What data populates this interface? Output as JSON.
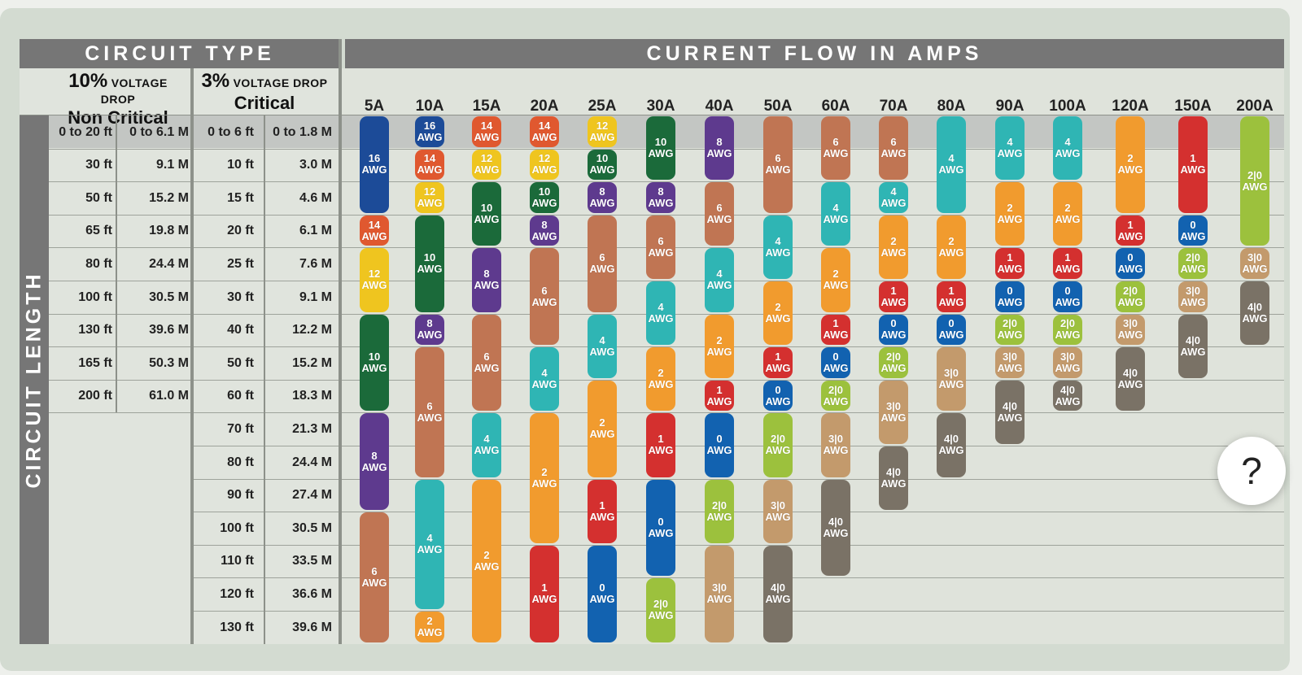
{
  "header": {
    "circuit_type": "CIRCUIT TYPE",
    "current_flow": "CURRENT FLOW IN AMPS",
    "circuit_length": "CIRCUIT LENGTH"
  },
  "circuit_types": [
    {
      "percent": "10%",
      "voltage_drop": "VOLTAGE DROP",
      "criticality": "Non Critical"
    },
    {
      "percent": "3%",
      "voltage_drop": "VOLTAGE DROP",
      "criticality": "Critical"
    }
  ],
  "non_critical_lengths": [
    [
      "0 to 20 ft",
      "0 to 6.1 M"
    ],
    [
      "30 ft",
      "9.1 M"
    ],
    [
      "50 ft",
      "15.2 M"
    ],
    [
      "65 ft",
      "19.8 M"
    ],
    [
      "80 ft",
      "24.4 M"
    ],
    [
      "100 ft",
      "30.5 M"
    ],
    [
      "130 ft",
      "39.6 M"
    ],
    [
      "165 ft",
      "50.3 M"
    ],
    [
      "200 ft",
      "61.0 M"
    ]
  ],
  "critical_lengths": [
    [
      "0 to 6 ft",
      "0 to 1.8 M"
    ],
    [
      "10 ft",
      "3.0 M"
    ],
    [
      "15 ft",
      "4.6 M"
    ],
    [
      "20 ft",
      "6.1 M"
    ],
    [
      "25 ft",
      "7.6 M"
    ],
    [
      "30 ft",
      "9.1 M"
    ],
    [
      "40 ft",
      "12.2 M"
    ],
    [
      "50 ft",
      "15.2 M"
    ],
    [
      "60 ft",
      "18.3 M"
    ],
    [
      "70 ft",
      "21.3 M"
    ],
    [
      "80 ft",
      "24.4 M"
    ],
    [
      "90 ft",
      "27.4 M"
    ],
    [
      "100 ft",
      "30.5 M"
    ],
    [
      "110 ft",
      "33.5 M"
    ],
    [
      "120 ft",
      "36.6 M"
    ],
    [
      "130 ft",
      "39.6 M"
    ]
  ],
  "unit_label": "AWG",
  "gauge_colors": {
    "16": "#1c4b98",
    "14": "#e0582f",
    "12": "#efc51f",
    "10": "#1b6a3a",
    "8": "#5e3a8e",
    "6": "#c07553",
    "4": "#2fb5b4",
    "2": "#f19b2e",
    "1": "#d4302f",
    "0": "#1262b0",
    "2|0": "#9cc13d",
    "3|0": "#c39a6c",
    "4|0": "#7a7266"
  },
  "amp_columns": [
    {
      "amps": "5A",
      "segments": [
        {
          "g": "16",
          "s": 0,
          "n": 3
        },
        {
          "g": "14",
          "s": 3,
          "n": 1
        },
        {
          "g": "12",
          "s": 4,
          "n": 2
        },
        {
          "g": "10",
          "s": 6,
          "n": 3
        },
        {
          "g": "8",
          "s": 9,
          "n": 3
        },
        {
          "g": "6",
          "s": 12,
          "n": 4
        }
      ]
    },
    {
      "amps": "10A",
      "segments": [
        {
          "g": "16",
          "s": 0,
          "n": 1
        },
        {
          "g": "14",
          "s": 1,
          "n": 1
        },
        {
          "g": "12",
          "s": 2,
          "n": 1
        },
        {
          "g": "10",
          "s": 3,
          "n": 3
        },
        {
          "g": "8",
          "s": 6,
          "n": 1
        },
        {
          "g": "6",
          "s": 7,
          "n": 4
        },
        {
          "g": "4",
          "s": 11,
          "n": 4
        },
        {
          "g": "2",
          "s": 15,
          "n": 1
        }
      ]
    },
    {
      "amps": "15A",
      "segments": [
        {
          "g": "14",
          "s": 0,
          "n": 1
        },
        {
          "g": "12",
          "s": 1,
          "n": 1
        },
        {
          "g": "10",
          "s": 2,
          "n": 2
        },
        {
          "g": "8",
          "s": 4,
          "n": 2
        },
        {
          "g": "6",
          "s": 6,
          "n": 3
        },
        {
          "g": "4",
          "s": 9,
          "n": 2
        },
        {
          "g": "2",
          "s": 11,
          "n": 5
        }
      ]
    },
    {
      "amps": "20A",
      "segments": [
        {
          "g": "14",
          "s": 0,
          "n": 1
        },
        {
          "g": "12",
          "s": 1,
          "n": 1
        },
        {
          "g": "10",
          "s": 2,
          "n": 1
        },
        {
          "g": "8",
          "s": 3,
          "n": 1
        },
        {
          "g": "6",
          "s": 4,
          "n": 3
        },
        {
          "g": "4",
          "s": 7,
          "n": 2
        },
        {
          "g": "2",
          "s": 9,
          "n": 4
        },
        {
          "g": "1",
          "s": 13,
          "n": 3
        }
      ]
    },
    {
      "amps": "25A",
      "segments": [
        {
          "g": "12",
          "s": 0,
          "n": 1
        },
        {
          "g": "10",
          "s": 1,
          "n": 1
        },
        {
          "g": "8",
          "s": 2,
          "n": 1
        },
        {
          "g": "6",
          "s": 3,
          "n": 3
        },
        {
          "g": "4",
          "s": 6,
          "n": 2
        },
        {
          "g": "2",
          "s": 8,
          "n": 3
        },
        {
          "g": "1",
          "s": 11,
          "n": 2
        },
        {
          "g": "0",
          "s": 13,
          "n": 3
        }
      ]
    },
    {
      "amps": "30A",
      "segments": [
        {
          "g": "10",
          "s": 0,
          "n": 2
        },
        {
          "g": "8",
          "s": 2,
          "n": 1
        },
        {
          "g": "6",
          "s": 3,
          "n": 2
        },
        {
          "g": "4",
          "s": 5,
          "n": 2
        },
        {
          "g": "2",
          "s": 7,
          "n": 2
        },
        {
          "g": "1",
          "s": 9,
          "n": 2
        },
        {
          "g": "0",
          "s": 11,
          "n": 3
        },
        {
          "g": "2|0",
          "s": 14,
          "n": 2
        }
      ]
    },
    {
      "amps": "40A",
      "segments": [
        {
          "g": "8",
          "s": 0,
          "n": 2
        },
        {
          "g": "6",
          "s": 2,
          "n": 2
        },
        {
          "g": "4",
          "s": 4,
          "n": 2
        },
        {
          "g": "2",
          "s": 6,
          "n": 2
        },
        {
          "g": "1",
          "s": 8,
          "n": 1
        },
        {
          "g": "0",
          "s": 9,
          "n": 2
        },
        {
          "g": "2|0",
          "s": 11,
          "n": 2
        },
        {
          "g": "3|0",
          "s": 13,
          "n": 3
        }
      ]
    },
    {
      "amps": "50A",
      "segments": [
        {
          "g": "6",
          "s": 0,
          "n": 3
        },
        {
          "g": "4",
          "s": 3,
          "n": 2
        },
        {
          "g": "2",
          "s": 5,
          "n": 2
        },
        {
          "g": "1",
          "s": 7,
          "n": 1
        },
        {
          "g": "0",
          "s": 8,
          "n": 1
        },
        {
          "g": "2|0",
          "s": 9,
          "n": 2
        },
        {
          "g": "3|0",
          "s": 11,
          "n": 2
        },
        {
          "g": "4|0",
          "s": 13,
          "n": 3
        }
      ]
    },
    {
      "amps": "60A",
      "segments": [
        {
          "g": "6",
          "s": 0,
          "n": 2
        },
        {
          "g": "4",
          "s": 2,
          "n": 2
        },
        {
          "g": "2",
          "s": 4,
          "n": 2
        },
        {
          "g": "1",
          "s": 6,
          "n": 1
        },
        {
          "g": "0",
          "s": 7,
          "n": 1
        },
        {
          "g": "2|0",
          "s": 8,
          "n": 1
        },
        {
          "g": "3|0",
          "s": 9,
          "n": 2
        },
        {
          "g": "4|0",
          "s": 11,
          "n": 3
        }
      ]
    },
    {
      "amps": "70A",
      "segments": [
        {
          "g": "6",
          "s": 0,
          "n": 2
        },
        {
          "g": "4",
          "s": 2,
          "n": 1
        },
        {
          "g": "2",
          "s": 3,
          "n": 2
        },
        {
          "g": "1",
          "s": 5,
          "n": 1
        },
        {
          "g": "0",
          "s": 6,
          "n": 1
        },
        {
          "g": "2|0",
          "s": 7,
          "n": 1
        },
        {
          "g": "3|0",
          "s": 8,
          "n": 2
        },
        {
          "g": "4|0",
          "s": 10,
          "n": 2
        }
      ]
    },
    {
      "amps": "80A",
      "segments": [
        {
          "g": "4",
          "s": 0,
          "n": 3
        },
        {
          "g": "2",
          "s": 3,
          "n": 2
        },
        {
          "g": "1",
          "s": 5,
          "n": 1
        },
        {
          "g": "0",
          "s": 6,
          "n": 1
        },
        {
          "g": "3|0",
          "s": 7,
          "n": 2
        },
        {
          "g": "4|0",
          "s": 9,
          "n": 2
        }
      ]
    },
    {
      "amps": "90A",
      "segments": [
        {
          "g": "4",
          "s": 0,
          "n": 2
        },
        {
          "g": "2",
          "s": 2,
          "n": 2
        },
        {
          "g": "1",
          "s": 4,
          "n": 1
        },
        {
          "g": "0",
          "s": 5,
          "n": 1
        },
        {
          "g": "2|0",
          "s": 6,
          "n": 1
        },
        {
          "g": "3|0",
          "s": 7,
          "n": 1
        },
        {
          "g": "4|0",
          "s": 8,
          "n": 2
        }
      ]
    },
    {
      "amps": "100A",
      "segments": [
        {
          "g": "4",
          "s": 0,
          "n": 2
        },
        {
          "g": "2",
          "s": 2,
          "n": 2
        },
        {
          "g": "1",
          "s": 4,
          "n": 1
        },
        {
          "g": "0",
          "s": 5,
          "n": 1
        },
        {
          "g": "2|0",
          "s": 6,
          "n": 1
        },
        {
          "g": "3|0",
          "s": 7,
          "n": 1
        },
        {
          "g": "4|0",
          "s": 8,
          "n": 1
        }
      ]
    },
    {
      "amps": "120A",
      "segments": [
        {
          "g": "2",
          "s": 0,
          "n": 3
        },
        {
          "g": "1",
          "s": 3,
          "n": 1
        },
        {
          "g": "0",
          "s": 4,
          "n": 1
        },
        {
          "g": "2|0",
          "s": 5,
          "n": 1
        },
        {
          "g": "3|0",
          "s": 6,
          "n": 1
        },
        {
          "g": "4|0",
          "s": 7,
          "n": 2
        }
      ]
    },
    {
      "amps": "150A",
      "segments": [
        {
          "g": "1",
          "s": 0,
          "n": 3
        },
        {
          "g": "0",
          "s": 3,
          "n": 1
        },
        {
          "g": "2|0",
          "s": 4,
          "n": 1
        },
        {
          "g": "3|0",
          "s": 5,
          "n": 1
        },
        {
          "g": "4|0",
          "s": 6,
          "n": 2
        }
      ]
    },
    {
      "amps": "200A",
      "segments": [
        {
          "g": "2|0",
          "s": 0,
          "n": 4
        },
        {
          "g": "3|0",
          "s": 4,
          "n": 1
        },
        {
          "g": "4|0",
          "s": 5,
          "n": 2
        }
      ]
    }
  ],
  "help": {
    "label": "?"
  }
}
